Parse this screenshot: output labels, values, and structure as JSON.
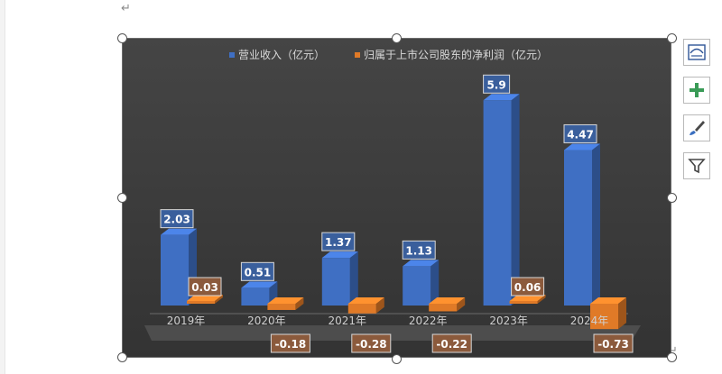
{
  "document": {
    "paragraph_mark": "↵"
  },
  "side_buttons": [
    {
      "name": "chart-elements-button",
      "icon": "chart-layout-icon"
    },
    {
      "name": "add-element-button",
      "icon": "plus-icon"
    },
    {
      "name": "chart-styles-button",
      "icon": "brush-icon"
    },
    {
      "name": "chart-filters-button",
      "icon": "filter-icon"
    }
  ],
  "colors": {
    "chart_bg": "#3b3b3b",
    "revenue": "#3f6fc3",
    "profit": "#e07a27",
    "text": "#d9d9d9"
  },
  "chart_data": {
    "type": "bar",
    "categories": [
      "2019年",
      "2020年",
      "2021年",
      "2022年",
      "2023年",
      "2024年"
    ],
    "series": [
      {
        "name": "营业收入（亿元）",
        "values": [
          2.03,
          0.51,
          1.37,
          1.13,
          5.9,
          4.47
        ]
      },
      {
        "name": "归属于上市公司股东的净利润（亿元）",
        "values": [
          0.03,
          -0.18,
          -0.28,
          -0.22,
          0.06,
          -0.73
        ]
      }
    ],
    "data_labels": [
      [
        "2.03",
        "0.51",
        "1.37",
        "1.13",
        "5.9",
        "4.47"
      ],
      [
        "0.03",
        "-0.18",
        "-0.28",
        "-0.22",
        "0.06",
        "-0.73"
      ]
    ],
    "ylim": [
      -0.73,
      5.9
    ],
    "legend_position": "top",
    "grid": false,
    "style": "3d-clustered-column"
  }
}
